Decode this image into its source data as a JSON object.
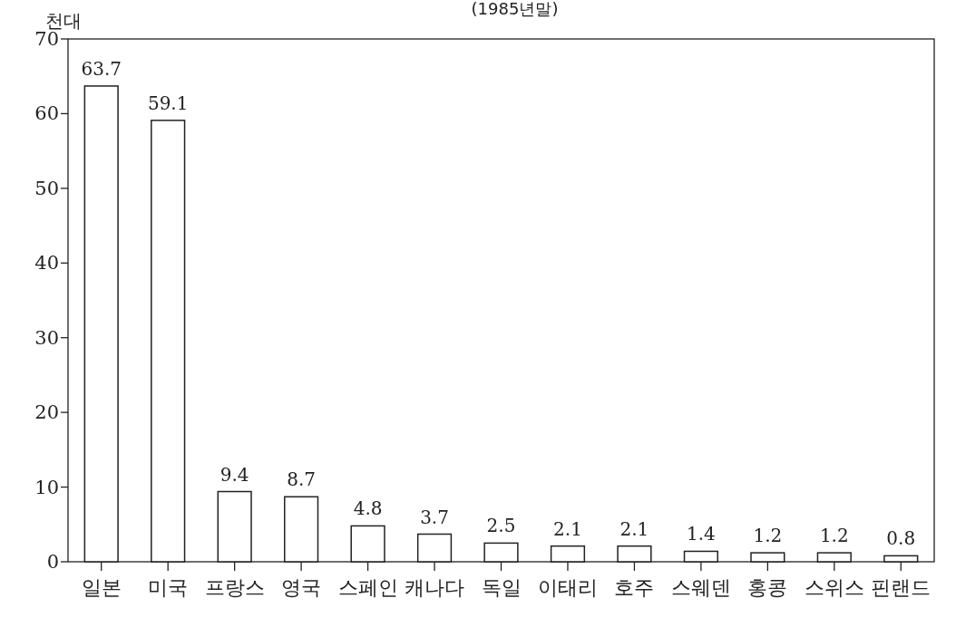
{
  "chart_data": {
    "type": "bar",
    "subtitle": "(1985년말)",
    "ylabel": "천대",
    "categories": [
      "일본",
      "미국",
      "프랑스",
      "영국",
      "스페인",
      "캐나다",
      "독일",
      "이태리",
      "호주",
      "스웨덴",
      "홍콩",
      "스위스",
      "핀랜드"
    ],
    "values": [
      63.7,
      59.1,
      9.4,
      8.7,
      4.8,
      3.7,
      2.5,
      2.1,
      2.1,
      1.4,
      1.2,
      1.2,
      0.8
    ],
    "color": "#ffffff",
    "data_labels": true,
    "ylim": [
      0,
      70
    ],
    "yticks": [
      0,
      10,
      20,
      30,
      40,
      50,
      60,
      70
    ]
  }
}
